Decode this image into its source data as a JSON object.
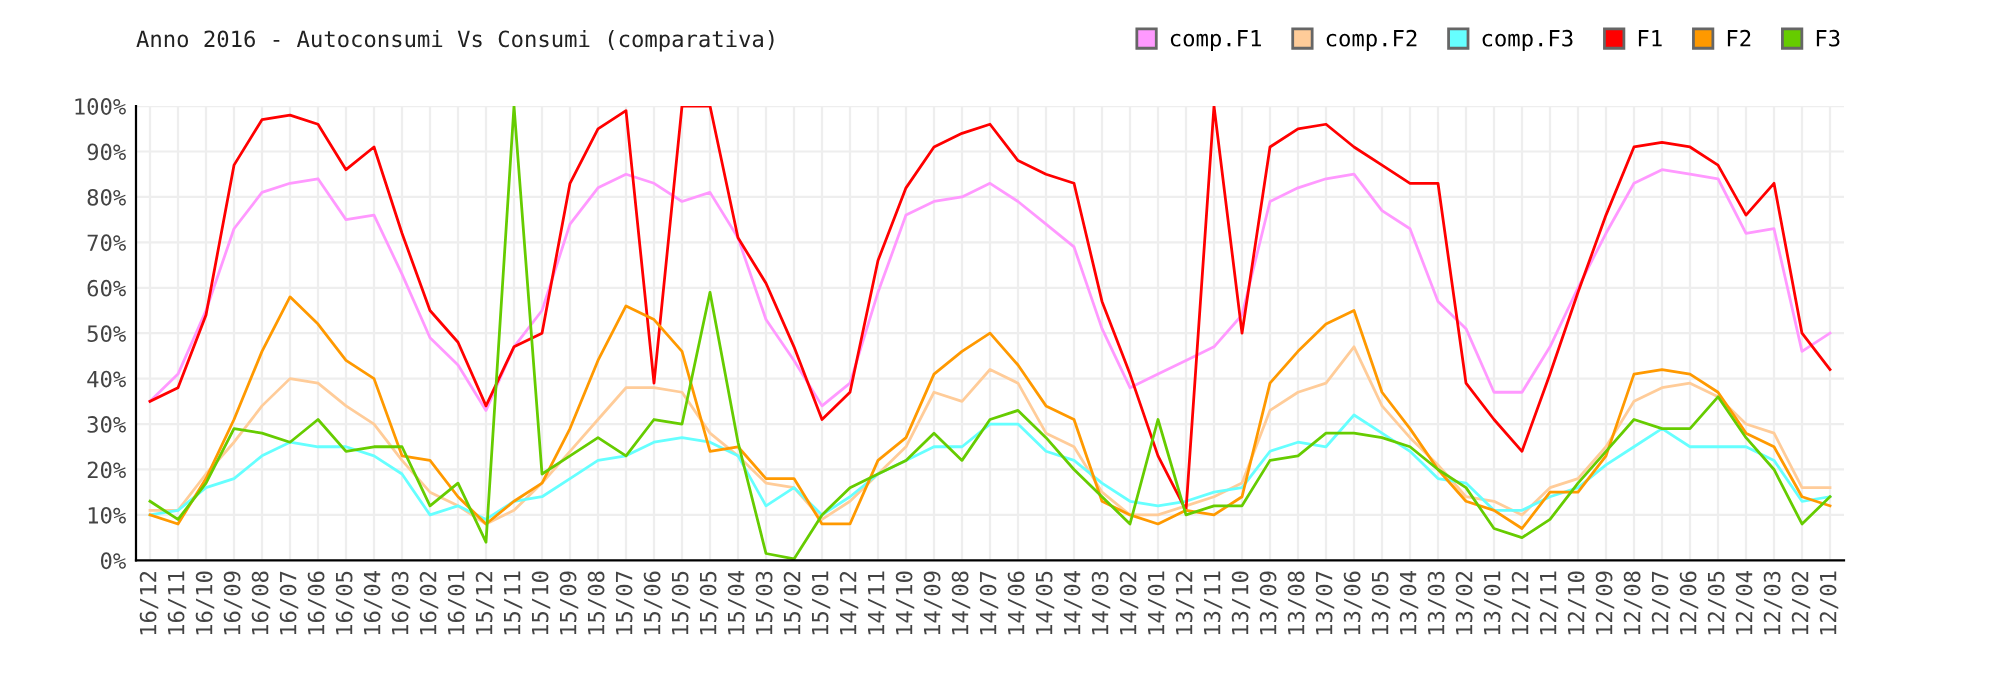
{
  "chart_data": {
    "type": "line",
    "title": "Anno 2016 - Autoconsumi Vs Consumi (comparativa)",
    "categories": [
      "16/12",
      "16/11",
      "16/10",
      "16/09",
      "16/08",
      "16/07",
      "16/06",
      "16/05",
      "16/04",
      "16/03",
      "16/02",
      "16/01",
      "15/12",
      "15/11",
      "15/10",
      "15/09",
      "15/08",
      "15/07",
      "15/06",
      "15/05",
      "15/05",
      "15/04",
      "15/03",
      "15/02",
      "15/01",
      "14/12",
      "14/11",
      "14/10",
      "14/09",
      "14/08",
      "14/07",
      "14/06",
      "14/05",
      "14/04",
      "14/03",
      "14/02",
      "14/01",
      "13/12",
      "13/11",
      "13/10",
      "13/09",
      "13/08",
      "13/07",
      "13/06",
      "13/05",
      "13/04",
      "13/03",
      "13/02",
      "13/01",
      "12/12",
      "12/11",
      "12/10",
      "12/09",
      "12/08",
      "12/07",
      "12/06",
      "12/05",
      "12/04",
      "12/03",
      "12/02",
      "12/01"
    ],
    "series": [
      {
        "name": "comp.F1",
        "color": "#ff99ff",
        "values": [
          35,
          41,
          55,
          73,
          81,
          83,
          84,
          75,
          76,
          63,
          49,
          43,
          33,
          47,
          55,
          74,
          82,
          85,
          83,
          79,
          81,
          71,
          53,
          44,
          34,
          39,
          59,
          76,
          79,
          80,
          83,
          79,
          74,
          69,
          51,
          38,
          41,
          44,
          47,
          54,
          79,
          82,
          84,
          85,
          77,
          73,
          57,
          51,
          37,
          37,
          47,
          60,
          72,
          83,
          86,
          85,
          84,
          72,
          73,
          46,
          50
        ]
      },
      {
        "name": "comp.F2",
        "color": "#ffcc99",
        "values": [
          11,
          11,
          19,
          26,
          34,
          40,
          39,
          34,
          30,
          22,
          15,
          12,
          8,
          11,
          17,
          24,
          31,
          38,
          38,
          37,
          28,
          23,
          17,
          16,
          9,
          13,
          19,
          25,
          37,
          35,
          42,
          39,
          28,
          25,
          15,
          10,
          10,
          12,
          14,
          17,
          33,
          37,
          39,
          47,
          34,
          27,
          21,
          14,
          13,
          10,
          16,
          18,
          25,
          35,
          38,
          39,
          36,
          30,
          28,
          16,
          16
        ]
      },
      {
        "name": "comp.F3",
        "color": "#66ffff",
        "values": [
          10,
          11,
          16,
          18,
          23,
          26,
          25,
          25,
          23,
          19,
          10,
          12,
          9,
          13,
          14,
          18,
          22,
          23,
          26,
          27,
          26,
          23,
          12,
          16,
          10,
          14,
          19,
          22,
          25,
          25,
          30,
          30,
          24,
          22,
          17,
          13,
          12,
          13,
          15,
          16,
          24,
          26,
          25,
          32,
          28,
          24,
          18,
          17,
          11,
          11,
          14,
          16,
          21,
          25,
          29,
          25,
          25,
          25,
          22,
          13,
          14
        ]
      },
      {
        "name": "F1",
        "color": "#ff0000",
        "values": [
          35,
          38,
          54,
          87,
          97,
          98,
          96,
          86,
          91,
          72,
          55,
          48,
          34,
          47,
          50,
          83,
          95,
          99,
          39,
          100,
          100,
          71,
          61,
          47,
          31,
          37,
          66,
          82,
          91,
          94,
          96,
          88,
          85,
          83,
          57,
          41,
          23,
          11,
          100,
          50,
          91,
          95,
          96,
          91,
          87,
          83,
          83,
          39,
          31,
          24,
          41,
          59,
          76,
          91,
          92,
          91,
          87,
          76,
          83,
          50,
          42
        ]
      },
      {
        "name": "F2",
        "color": "#ff9900",
        "values": [
          10,
          8,
          18,
          31,
          46,
          58,
          52,
          44,
          40,
          23,
          22,
          14,
          8,
          13,
          17,
          29,
          44,
          56,
          53,
          46,
          24,
          25,
          18,
          18,
          8,
          8,
          22,
          27,
          41,
          46,
          50,
          43,
          34,
          31,
          13,
          10,
          8,
          11,
          10,
          14,
          39,
          46,
          52,
          55,
          37,
          29,
          20,
          13,
          11,
          7,
          15,
          15,
          23,
          41,
          42,
          41,
          37,
          28,
          25,
          14,
          12
        ]
      },
      {
        "name": "F3",
        "color": "#66cc00",
        "values": [
          13,
          9,
          17,
          29,
          28,
          26,
          31,
          24,
          25,
          25,
          12,
          17,
          4,
          100,
          19,
          23,
          27,
          23,
          31,
          30,
          59,
          26,
          1.5,
          0.3,
          10,
          16,
          19,
          22,
          28,
          22,
          31,
          33,
          27,
          20,
          14,
          8,
          31,
          10,
          12,
          12,
          22,
          23,
          28,
          28,
          27,
          25,
          20,
          16,
          7,
          5,
          9,
          17,
          24,
          31,
          29,
          29,
          36,
          27,
          20,
          8,
          14
        ]
      }
    ],
    "ylim": [
      0,
      100
    ],
    "yticks": [
      {
        "value": 0,
        "label": "0%"
      },
      {
        "value": 10,
        "label": "10%"
      },
      {
        "value": 20,
        "label": "20%"
      },
      {
        "value": 30,
        "label": "30%"
      },
      {
        "value": 40,
        "label": "40%"
      },
      {
        "value": 50,
        "label": "50%"
      },
      {
        "value": 60,
        "label": "60%"
      },
      {
        "value": 70,
        "label": "70%"
      },
      {
        "value": 80,
        "label": "80%"
      },
      {
        "value": 90,
        "label": "90%"
      },
      {
        "value": 100,
        "label": "100%"
      }
    ],
    "grid": true,
    "legend": "top right",
    "marker": "none",
    "line_style": "solid"
  }
}
